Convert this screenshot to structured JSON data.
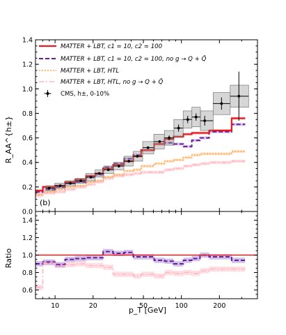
{
  "chart_data": [
    {
      "type": "line",
      "panel_label": "(b)",
      "xlabel": "p_T [GeV]",
      "ylabel": "R_AA^{h±}",
      "xscale": "log",
      "xlim": [
        7,
        400
      ],
      "ylim": [
        0.0,
        1.4
      ],
      "yticks": [
        "0.0",
        "0.2",
        "0.4",
        "0.6",
        "0.8",
        "1.0",
        "1.2",
        "1.4"
      ],
      "xticks": [
        "10",
        "20",
        "50",
        "100",
        "200"
      ],
      "bin_edges": [
        6.5,
        8,
        10,
        12,
        14.4,
        17.6,
        20.8,
        24,
        28.8,
        35.2,
        41.6,
        48,
        60.8,
        73.6,
        86.4,
        103.6,
        120.8,
        140.4,
        165.6,
        250,
        320
      ],
      "legend_position": "top-left",
      "legend": [
        "MATTER + LBT,  c1 = 10,  c2 = 100",
        "MATTER + LBT,  c1 = 10,  c2 = 100,  no g → Q + Q̄",
        "MATTER + LBT,  HTL",
        "MATTER + LBT,  HTL,  no g → Q + Q̄",
        "CMS, h±, 0-10%"
      ],
      "series": [
        {
          "name": "MATTER + LBT,  c1 = 10,  c2 = 100",
          "color": "#e41a1c",
          "style": "solid",
          "values": [
            0.17,
            0.2,
            0.21,
            0.24,
            0.26,
            0.29,
            0.31,
            0.35,
            0.38,
            0.41,
            0.45,
            0.5,
            0.55,
            0.59,
            0.61,
            0.63,
            0.64,
            0.64,
            0.66,
            0.76
          ]
        },
        {
          "name": "MATTER + LBT,  c1 = 10,  c2 = 100,  no g → Q + Q̄",
          "color": "#6a1b9a",
          "style": "dashed",
          "values": [
            0.16,
            0.18,
            0.2,
            0.23,
            0.24,
            0.28,
            0.3,
            0.36,
            0.39,
            0.43,
            0.46,
            0.5,
            0.55,
            0.56,
            0.55,
            0.53,
            0.58,
            0.6,
            0.65,
            0.71
          ]
        },
        {
          "name": "MATTER + LBT,  HTL",
          "color": "#ffa040",
          "style": "dotted",
          "values": [
            0.14,
            0.16,
            0.18,
            0.2,
            0.21,
            0.24,
            0.25,
            0.28,
            0.3,
            0.33,
            0.34,
            0.37,
            0.39,
            0.41,
            0.42,
            0.44,
            0.46,
            0.47,
            0.47,
            0.49
          ]
        },
        {
          "name": "MATTER + LBT,  HTL,  no g → Q + Q̄",
          "color": "#ffb6c1",
          "style": "dashdot",
          "values": [
            0.13,
            0.15,
            0.16,
            0.18,
            0.2,
            0.22,
            0.24,
            0.27,
            0.29,
            0.3,
            0.31,
            0.32,
            0.32,
            0.34,
            0.35,
            0.37,
            0.38,
            0.39,
            0.4,
            0.41
          ]
        }
      ],
      "data_points": {
        "name": "CMS, h±, 0-10%",
        "x": [
          9.0,
          11.0,
          13.2,
          16.0,
          19.2,
          22.4,
          26.4,
          32.0,
          38.4,
          44.8,
          54.4,
          67.2,
          80.0,
          95.0,
          112.2,
          130.6,
          153.0,
          207.8,
          285.0
        ],
        "y": [
          0.19,
          0.21,
          0.23,
          0.25,
          0.28,
          0.31,
          0.34,
          0.37,
          0.41,
          0.45,
          0.52,
          0.57,
          0.6,
          0.68,
          0.75,
          0.77,
          0.74,
          0.88,
          0.94
        ],
        "err": [
          0.01,
          0.01,
          0.01,
          0.01,
          0.01,
          0.01,
          0.01,
          0.01,
          0.01,
          0.01,
          0.01,
          0.01,
          0.02,
          0.03,
          0.03,
          0.03,
          0.04,
          0.05,
          0.2
        ],
        "sys": [
          0.02,
          0.02,
          0.02,
          0.02,
          0.03,
          0.03,
          0.03,
          0.03,
          0.04,
          0.04,
          0.05,
          0.06,
          0.06,
          0.07,
          0.07,
          0.08,
          0.08,
          0.09,
          0.09
        ]
      }
    },
    {
      "type": "line",
      "xlabel": "p_T [GeV]",
      "ylabel": "Ratio",
      "xscale": "log",
      "xlim": [
        7,
        400
      ],
      "ylim": [
        0.5,
        1.5
      ],
      "yticks": [
        "0.6",
        "0.8",
        "1.0",
        "1.2",
        "1.4"
      ],
      "xticks": [
        "10",
        "20",
        "50",
        "100",
        "200"
      ],
      "reference_line": 1.0,
      "series": [
        {
          "name": "MATTER + LBT,  c1 = 10,  c2 = 100,  no g → Q + Q̄",
          "color": "#6a1b9a",
          "style": "dashed",
          "values": [
            0.9,
            0.92,
            0.89,
            0.95,
            0.96,
            0.97,
            0.97,
            1.04,
            1.02,
            1.03,
            0.98,
            0.98,
            0.94,
            0.93,
            0.9,
            0.94,
            0.96,
            1.0,
            0.98,
            0.94
          ]
        },
        {
          "name": "MATTER + LBT,  HTL,  no g → Q + Q̄",
          "color": "#ffb6c1",
          "style": "dashdot",
          "values": [
            0.63,
            0.91,
            0.88,
            0.89,
            0.9,
            0.88,
            0.88,
            0.86,
            0.78,
            0.78,
            0.76,
            0.78,
            0.76,
            0.8,
            0.79,
            0.8,
            0.79,
            0.82,
            0.84,
            0.84
          ]
        }
      ]
    }
  ]
}
